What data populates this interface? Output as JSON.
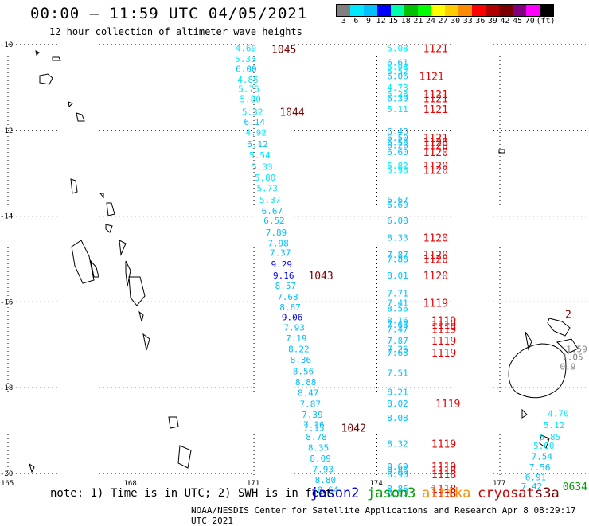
{
  "header": {
    "title": "00:00 – 11:59 UTC 04/05/2021",
    "subtitle": "12 hour collection of altimeter wave heights"
  },
  "scale": {
    "labels": [
      "3",
      "6",
      "9",
      "12",
      "15",
      "18",
      "21",
      "24",
      "27",
      "30",
      "33",
      "36",
      "39",
      "42",
      "45",
      "70",
      "(ft)"
    ],
    "colors": [
      "#7f7f7f",
      "#00e8ff",
      "#00bfff",
      "#0000ff",
      "#00ffaa",
      "#00c000",
      "#00ff00",
      "#ffff00",
      "#ffcc00",
      "#ff8c00",
      "#ff0000",
      "#b00000",
      "#7a0000",
      "#800080",
      "#ff00ff",
      "#000000"
    ]
  },
  "axes": {
    "lat": [
      {
        "label": "-10",
        "value": -10
      },
      {
        "label": "-12",
        "value": -12
      },
      {
        "label": "-14",
        "value": -14
      },
      {
        "label": "-16",
        "value": -16
      },
      {
        "label": "-18",
        "value": -18
      },
      {
        "label": "-20",
        "value": -20
      }
    ],
    "lon": [
      {
        "label": "165",
        "value": 165
      },
      {
        "label": "168",
        "value": 168
      },
      {
        "label": "171",
        "value": 171
      },
      {
        "label": "174",
        "value": 174
      },
      {
        "label": "177",
        "value": 177
      }
    ]
  },
  "tracks": [
    {
      "points": [
        {
          "lon": 170.78,
          "lat": -10.08,
          "v": "4.60"
        },
        {
          "lon": 170.77,
          "lat": -10.33,
          "v": "5.35"
        },
        {
          "lon": 170.79,
          "lat": -10.57,
          "v": "6.00"
        },
        {
          "lon": 170.83,
          "lat": -10.82,
          "v": "4.85"
        },
        {
          "lon": 170.85,
          "lat": -11.03,
          "v": "5.76"
        },
        {
          "lon": 170.89,
          "lat": -11.27,
          "v": "5.80"
        },
        {
          "lon": 170.94,
          "lat": -11.57,
          "v": "5.32"
        },
        {
          "lon": 170.99,
          "lat": -11.8,
          "v": "6.14"
        },
        {
          "lon": 171.03,
          "lat": -12.05,
          "v": "4.92"
        },
        {
          "lon": 171.06,
          "lat": -12.32,
          "v": "6.12"
        },
        {
          "lon": 171.12,
          "lat": -12.58,
          "v": "5.54"
        },
        {
          "lon": 171.18,
          "lat": -12.85,
          "v": "5.33"
        },
        {
          "lon": 171.25,
          "lat": -13.1,
          "v": "5.80"
        },
        {
          "lon": 171.3,
          "lat": -13.35,
          "v": "5.73"
        },
        {
          "lon": 171.37,
          "lat": -13.62,
          "v": "5.37"
        },
        {
          "lon": 171.42,
          "lat": -13.88,
          "v": "6.67"
        },
        {
          "lon": 171.47,
          "lat": -14.1,
          "v": "6.52"
        },
        {
          "lon": 171.52,
          "lat": -14.38,
          "v": "7.89"
        },
        {
          "lon": 171.57,
          "lat": -14.63,
          "v": "7.98"
        },
        {
          "lon": 171.62,
          "lat": -14.85,
          "v": "7.37"
        },
        {
          "lon": 171.65,
          "lat": -15.12,
          "v": "9.29"
        },
        {
          "lon": 171.7,
          "lat": -15.38,
          "v": "9.16"
        },
        {
          "lon": 171.75,
          "lat": -15.62,
          "v": "8.57"
        },
        {
          "lon": 171.8,
          "lat": -15.88,
          "v": "7.68"
        },
        {
          "lon": 171.86,
          "lat": -16.12,
          "v": "8.67"
        },
        {
          "lon": 171.91,
          "lat": -16.35,
          "v": "9.06"
        },
        {
          "lon": 171.96,
          "lat": -16.6,
          "v": "7.93"
        },
        {
          "lon": 172.01,
          "lat": -16.85,
          "v": "7.19"
        },
        {
          "lon": 172.07,
          "lat": -17.1,
          "v": "8.22"
        },
        {
          "lon": 172.12,
          "lat": -17.35,
          "v": "8.36"
        },
        {
          "lon": 172.18,
          "lat": -17.62,
          "v": "8.56"
        },
        {
          "lon": 172.24,
          "lat": -17.87,
          "v": "8.88"
        },
        {
          "lon": 172.3,
          "lat": -18.12,
          "v": "8.47"
        },
        {
          "lon": 172.35,
          "lat": -18.38,
          "v": "7.87"
        },
        {
          "lon": 172.4,
          "lat": -18.63,
          "v": "7.39"
        },
        {
          "lon": 172.44,
          "lat": -18.86,
          "v": "7.16"
        },
        {
          "lon": 172.44,
          "lat": -18.93,
          "v": "7.15"
        },
        {
          "lon": 172.5,
          "lat": -19.15,
          "v": "8.78"
        },
        {
          "lon": 172.55,
          "lat": -19.4,
          "v": "8.35"
        },
        {
          "lon": 172.6,
          "lat": -19.65,
          "v": "8.09"
        },
        {
          "lon": 172.66,
          "lat": -19.9,
          "v": "7.93"
        },
        {
          "lon": 172.72,
          "lat": -20.15,
          "v": "8.80"
        },
        {
          "lon": 172.78,
          "lat": -20.38,
          "v": "8.64"
        }
      ],
      "times": [
        {
          "lon": 171.7,
          "lat": -10.1,
          "t": "1045"
        },
        {
          "lon": 171.9,
          "lat": -11.57,
          "t": "1044"
        },
        {
          "lon": 172.6,
          "lat": -15.38,
          "t": "1043"
        },
        {
          "lon": 173.4,
          "lat": -18.93,
          "t": "1042"
        }
      ]
    },
    {
      "points": [
        {
          "lon": 174.48,
          "lat": -10.08,
          "v": "5.08"
        },
        {
          "lon": 174.48,
          "lat": -10.42,
          "v": "6.61"
        },
        {
          "lon": 174.48,
          "lat": -10.52,
          "v": "5.98"
        },
        {
          "lon": 174.48,
          "lat": -10.62,
          "v": "5.52"
        },
        {
          "lon": 174.48,
          "lat": -10.73,
          "v": "6.06"
        },
        {
          "lon": 174.48,
          "lat": -11.0,
          "v": "4.73"
        },
        {
          "lon": 174.48,
          "lat": -11.15,
          "v": "5.28"
        },
        {
          "lon": 174.48,
          "lat": -11.25,
          "v": "6.39"
        },
        {
          "lon": 174.48,
          "lat": -11.5,
          "v": "5.11"
        },
        {
          "lon": 174.48,
          "lat": -12.02,
          "v": "6.40"
        },
        {
          "lon": 174.48,
          "lat": -12.17,
          "v": "6.50"
        },
        {
          "lon": 174.48,
          "lat": -12.27,
          "v": "6.53"
        },
        {
          "lon": 174.48,
          "lat": -12.35,
          "v": "6.26"
        },
        {
          "lon": 174.48,
          "lat": -12.5,
          "v": "6.60"
        },
        {
          "lon": 174.48,
          "lat": -12.82,
          "v": "5.82"
        },
        {
          "lon": 174.48,
          "lat": -12.92,
          "v": "5.98"
        },
        {
          "lon": 174.48,
          "lat": -13.62,
          "v": "6.67"
        },
        {
          "lon": 174.48,
          "lat": -13.73,
          "v": "6.69"
        },
        {
          "lon": 174.48,
          "lat": -14.1,
          "v": "6.08"
        },
        {
          "lon": 174.48,
          "lat": -14.5,
          "v": "8.33"
        },
        {
          "lon": 174.48,
          "lat": -14.9,
          "v": "7.87"
        },
        {
          "lon": 174.48,
          "lat": -15.0,
          "v": "7.88"
        },
        {
          "lon": 174.48,
          "lat": -15.38,
          "v": "8.01"
        },
        {
          "lon": 174.48,
          "lat": -15.8,
          "v": "7.71"
        },
        {
          "lon": 174.48,
          "lat": -16.02,
          "v": "7.41"
        },
        {
          "lon": 174.48,
          "lat": -16.15,
          "v": "8.56"
        },
        {
          "lon": 174.48,
          "lat": -16.43,
          "v": "8.16"
        },
        {
          "lon": 174.48,
          "lat": -16.53,
          "v": "7.63"
        },
        {
          "lon": 174.48,
          "lat": -16.63,
          "v": "7.47"
        },
        {
          "lon": 174.48,
          "lat": -16.9,
          "v": "7.87"
        },
        {
          "lon": 174.48,
          "lat": -17.1,
          "v": "7.26"
        },
        {
          "lon": 174.48,
          "lat": -17.18,
          "v": "7.63"
        },
        {
          "lon": 174.48,
          "lat": -17.65,
          "v": "7.51"
        },
        {
          "lon": 174.48,
          "lat": -18.1,
          "v": "8.21"
        },
        {
          "lon": 174.48,
          "lat": -18.37,
          "v": "8.02"
        },
        {
          "lon": 174.48,
          "lat": -18.7,
          "v": "8.08"
        },
        {
          "lon": 174.48,
          "lat": -19.3,
          "v": "8.32"
        },
        {
          "lon": 174.48,
          "lat": -19.83,
          "v": "8.69"
        },
        {
          "lon": 174.48,
          "lat": -19.93,
          "v": "8.86"
        },
        {
          "lon": 174.48,
          "lat": -20.02,
          "v": "8.90"
        },
        {
          "lon": 174.48,
          "lat": -20.35,
          "v": "8.86"
        },
        {
          "lon": 174.48,
          "lat": -20.45,
          "v": "8.90"
        }
      ],
      "times": [
        {
          "lon": 175.4,
          "lat": -10.08,
          "t": "1121"
        },
        {
          "lon": 175.3,
          "lat": -10.73,
          "t": "1121"
        },
        {
          "lon": 175.4,
          "lat": -11.15,
          "t": "1121"
        },
        {
          "lon": 175.4,
          "lat": -11.25,
          "t": "1121"
        },
        {
          "lon": 175.4,
          "lat": -11.5,
          "t": "1121"
        },
        {
          "lon": 175.4,
          "lat": -12.17,
          "t": "1121"
        },
        {
          "lon": 175.4,
          "lat": -12.27,
          "t": "1120"
        },
        {
          "lon": 175.4,
          "lat": -12.35,
          "t": "1120"
        },
        {
          "lon": 175.4,
          "lat": -12.5,
          "t": "1120"
        },
        {
          "lon": 175.4,
          "lat": -12.82,
          "t": "1120"
        },
        {
          "lon": 175.4,
          "lat": -12.92,
          "t": "1120"
        },
        {
          "lon": 175.4,
          "lat": -14.5,
          "t": "1120"
        },
        {
          "lon": 175.4,
          "lat": -14.9,
          "t": "1120"
        },
        {
          "lon": 175.4,
          "lat": -15.0,
          "t": "1120"
        },
        {
          "lon": 175.4,
          "lat": -15.38,
          "t": "1120"
        },
        {
          "lon": 175.4,
          "lat": -16.02,
          "t": "1119"
        },
        {
          "lon": 175.6,
          "lat": -16.43,
          "t": "1119"
        },
        {
          "lon": 175.6,
          "lat": -16.53,
          "t": "1119"
        },
        {
          "lon": 175.6,
          "lat": -16.63,
          "t": "1119"
        },
        {
          "lon": 175.6,
          "lat": -16.9,
          "t": "1119"
        },
        {
          "lon": 175.6,
          "lat": -17.18,
          "t": "1119"
        },
        {
          "lon": 175.7,
          "lat": -18.37,
          "t": "1119"
        },
        {
          "lon": 175.6,
          "lat": -19.3,
          "t": "1119"
        },
        {
          "lon": 175.6,
          "lat": -19.83,
          "t": "1119"
        },
        {
          "lon": 175.6,
          "lat": -19.93,
          "t": "1118"
        },
        {
          "lon": 175.6,
          "lat": -20.02,
          "t": "1118"
        },
        {
          "lon": 175.6,
          "lat": -20.35,
          "t": "1118"
        },
        {
          "lon": 175.6,
          "lat": -20.45,
          "t": "1118"
        }
      ]
    },
    {
      "points": [
        {
          "lon": 178.4,
          "lat": -18.6,
          "v": "4.70"
        },
        {
          "lon": 178.3,
          "lat": -18.87,
          "v": "5.12"
        },
        {
          "lon": 178.2,
          "lat": -19.15,
          "v": "5.85"
        },
        {
          "lon": 178.05,
          "lat": -19.35,
          "v": "5.00"
        },
        {
          "lon": 178.0,
          "lat": -19.6,
          "v": "7.54"
        },
        {
          "lon": 177.95,
          "lat": -19.85,
          "v": "7.56"
        },
        {
          "lon": 177.85,
          "lat": -20.08,
          "v": "6.91"
        },
        {
          "lon": 177.75,
          "lat": -20.3,
          "v": "7.42"
        }
      ],
      "times": [
        {
          "lon": 178.8,
          "lat": -20.3,
          "t": "0634"
        }
      ]
    },
    {
      "points": [
        {
          "lon": 178.85,
          "lat": -17.1,
          "v": "1.59"
        },
        {
          "lon": 178.75,
          "lat": -17.28,
          "v": "1.05"
        },
        {
          "lon": 178.7,
          "lat": -17.5,
          "v": "0.9"
        }
      ],
      "times": [
        {
          "lon": 179.1,
          "lat": -16.28,
          "t": "2"
        }
      ]
    }
  ],
  "legend": {
    "note": "note: 1) Time is in UTC; 2) SWH is in feet",
    "satellites": [
      {
        "name": "jason2",
        "color": "#0000cc"
      },
      {
        "name": "jason3",
        "color": "#00a000"
      },
      {
        "name": "altika",
        "color": "#ff8c00"
      },
      {
        "name": "cryosat",
        "color": "#cc0000"
      },
      {
        "name": "s3a",
        "color": "#7a0000"
      }
    ]
  },
  "credit": "NOAA/NESDIS Center for Satellite Applications and Research    Apr  8 08:29:17 UTC 2021"
}
